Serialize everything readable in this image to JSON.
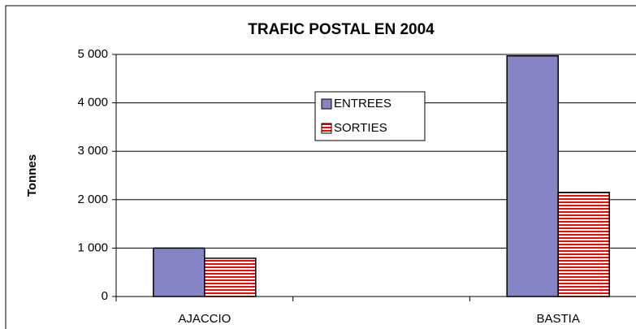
{
  "chart_data": {
    "type": "bar",
    "title": "TRAFIC POSTAL EN 2004",
    "y_label": "Tonnes",
    "categories": [
      "AJACCIO",
      null,
      "BASTIA"
    ],
    "series": [
      {
        "name": "ENTREES",
        "color": "#8585c5",
        "values": [
          1000,
          null,
          4970
        ]
      },
      {
        "name": "SORTIES",
        "color": "#ff0000",
        "values": [
          790,
          null,
          2150
        ]
      }
    ],
    "ylim": [
      0,
      5000
    ],
    "yticks": [
      {
        "value": 0,
        "label": "0"
      },
      {
        "value": 1000,
        "label": "1 000"
      },
      {
        "value": 2000,
        "label": "2 000"
      },
      {
        "value": 3000,
        "label": "3 000"
      },
      {
        "value": 4000,
        "label": "4 000"
      },
      {
        "value": 5000,
        "label": "5 000"
      }
    ],
    "grid": true
  }
}
